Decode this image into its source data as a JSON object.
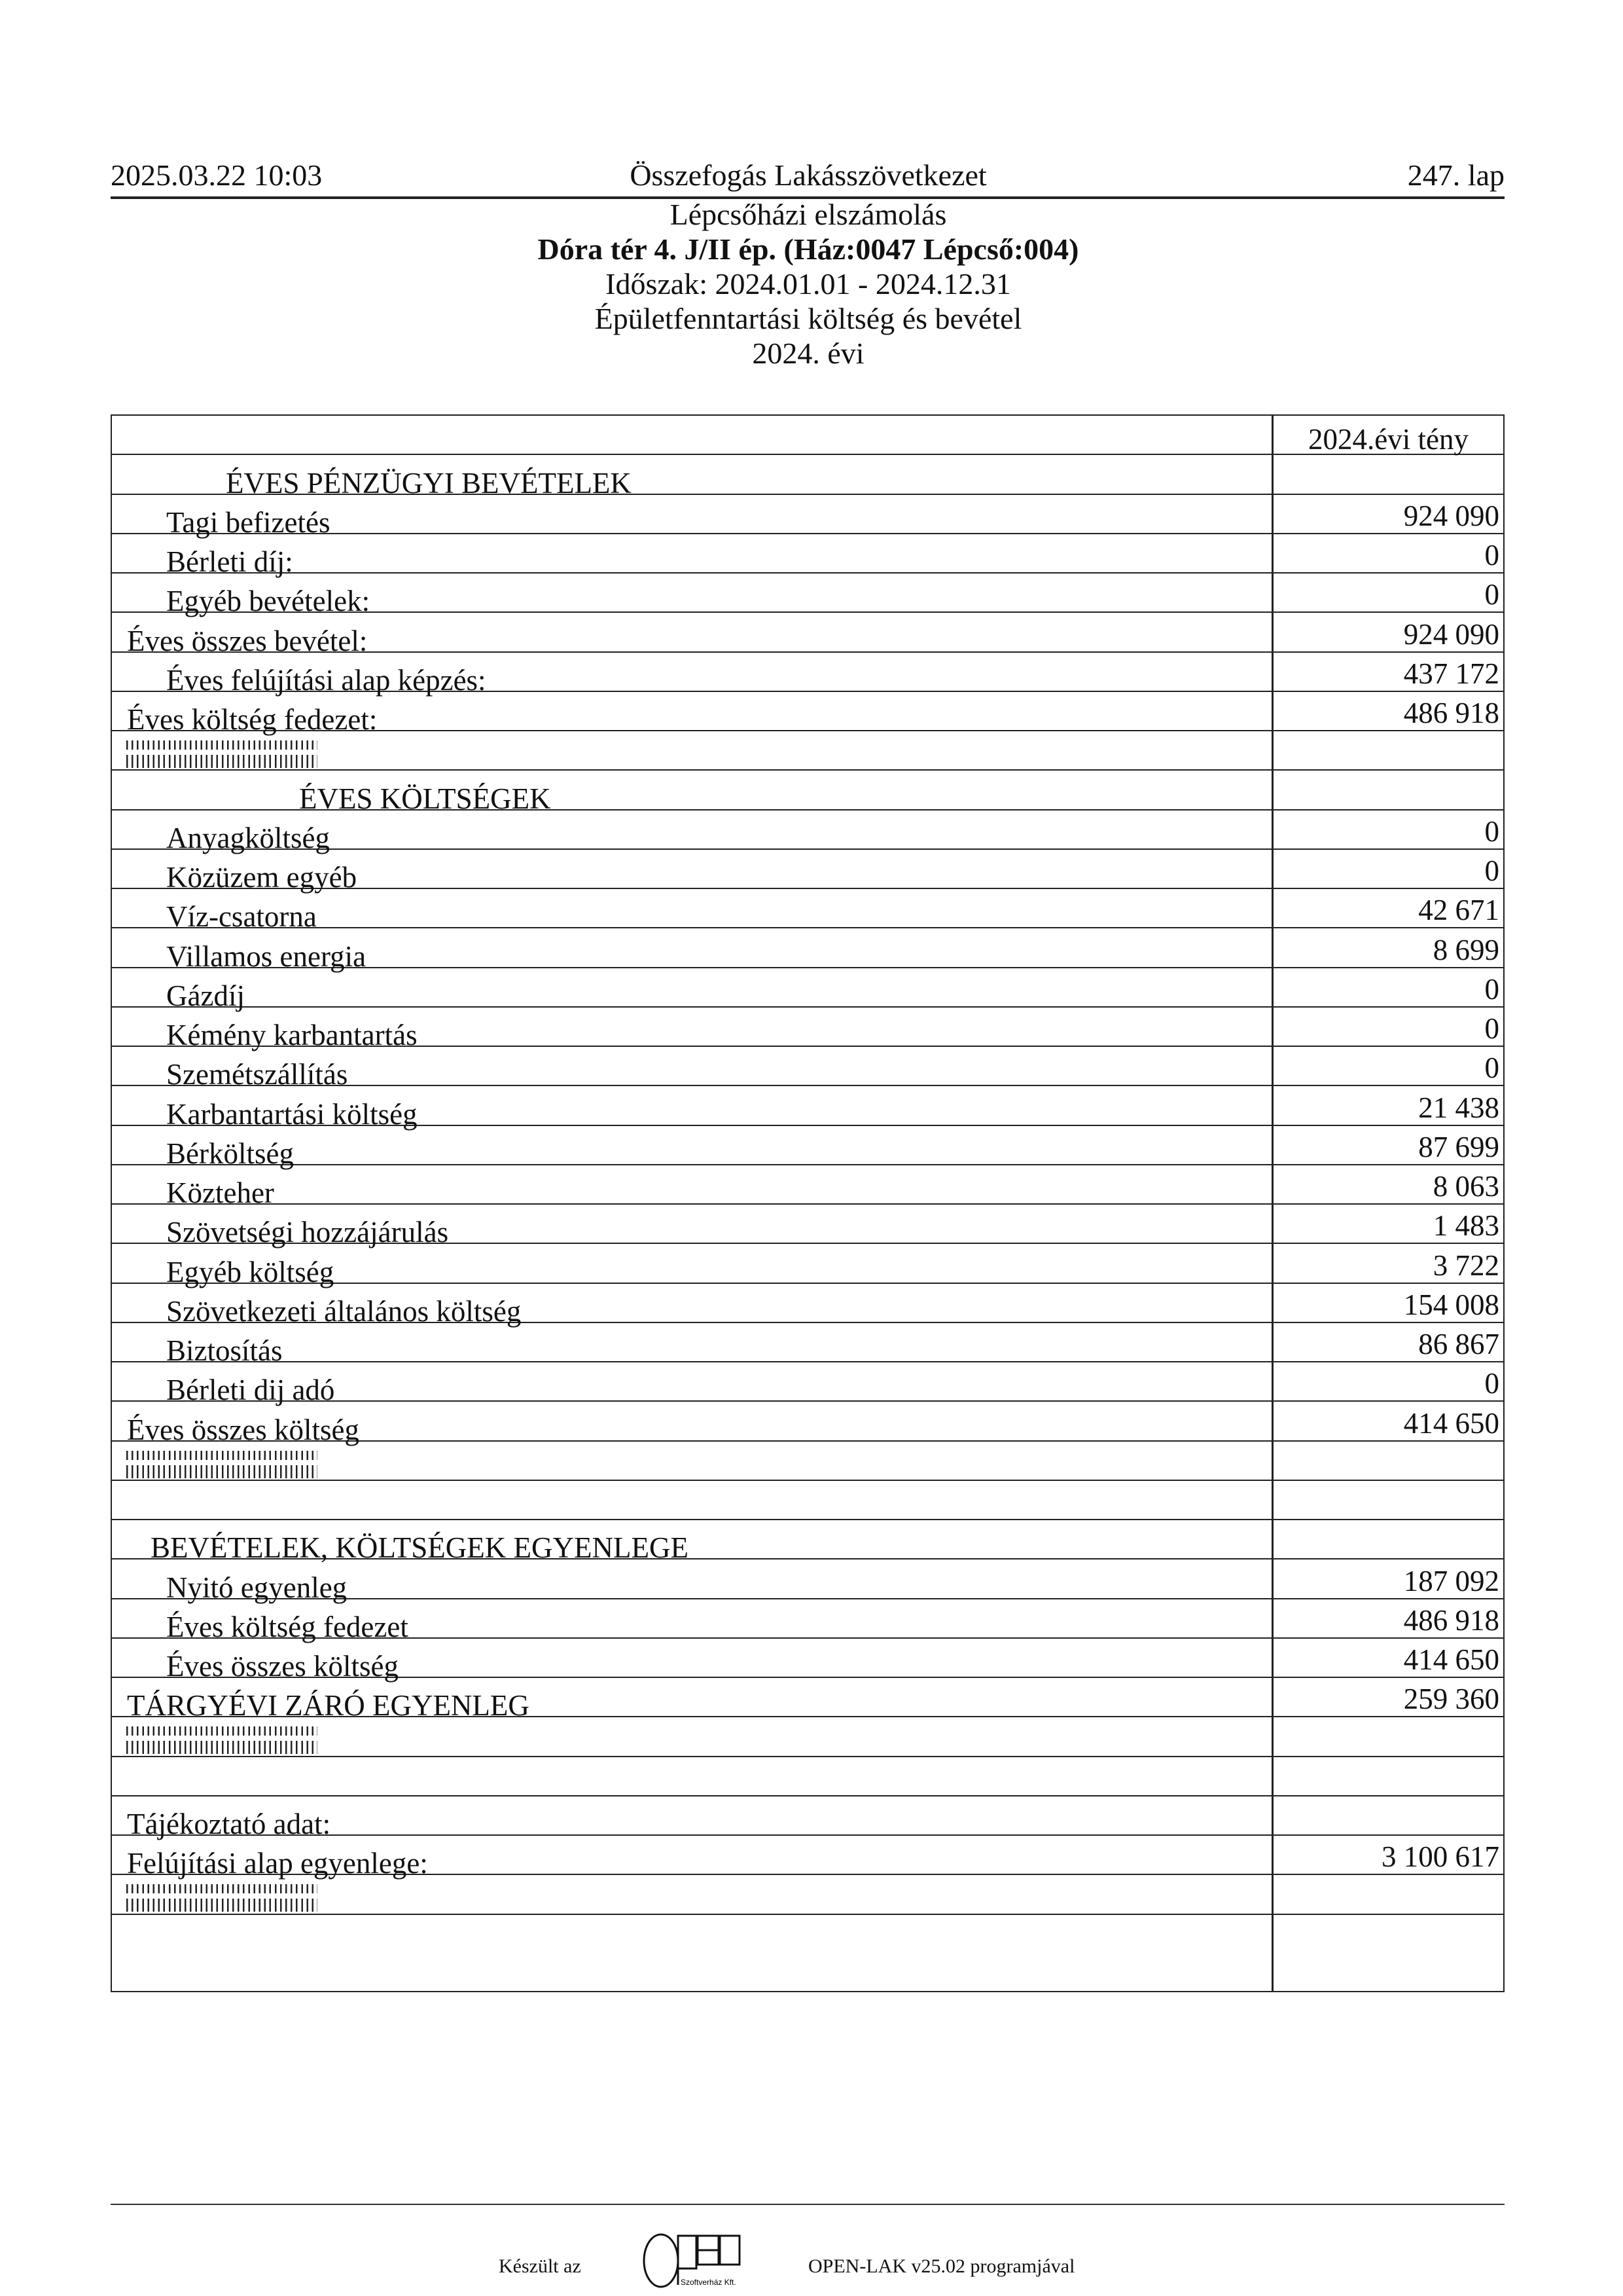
{
  "header": {
    "datetime": "2025.03.22 10:03",
    "organization": "Összefogás Lakásszövetkezet",
    "page": "247. lap"
  },
  "titles": {
    "line1": "Lépcsőházi elszámolás",
    "line2": "Dóra tér 4. J/II ép. (Ház:0047 Lépcső:004)",
    "line3": "Időszak: 2024.01.01 - 2024.12.31",
    "line4": "Épületfenntartási költség és bevétel",
    "line5": "2024. évi"
  },
  "table": {
    "column_header": "2024.évi tény",
    "rows": [
      {
        "kind": "section-income",
        "label": "ÉVES PÉNZÜGYI BEVÉTELEK",
        "value": ""
      },
      {
        "kind": "item",
        "label": "Tagi  befizetés",
        "value": "924 090"
      },
      {
        "kind": "item",
        "label": "Bérleti díj:",
        "value": "0"
      },
      {
        "kind": "item",
        "label": "Egyéb bevételek:",
        "value": "0"
      },
      {
        "kind": "total",
        "label": "Éves összes bevétel:",
        "value": "924 090"
      },
      {
        "kind": "item",
        "label": "Éves felújítási alap képzés:",
        "value": "437 172"
      },
      {
        "kind": "total",
        "label": "Éves költség fedezet:",
        "value": "486 918"
      },
      {
        "kind": "hatch",
        "label": "",
        "value": ""
      },
      {
        "kind": "section-costs",
        "label": "ÉVES KÖLTSÉGEK",
        "value": ""
      },
      {
        "kind": "item",
        "label": "Anyagköltség",
        "value": "0"
      },
      {
        "kind": "item",
        "label": "Közüzem egyéb",
        "value": "0"
      },
      {
        "kind": "item",
        "label": "Víz-csatorna",
        "value": "42 671"
      },
      {
        "kind": "item",
        "label": "Villamos energia",
        "value": "8 699"
      },
      {
        "kind": "item",
        "label": "Gázdíj",
        "value": "0"
      },
      {
        "kind": "item",
        "label": "Kémény karbantartás",
        "value": "0"
      },
      {
        "kind": "item",
        "label": "Szemétszállítás",
        "value": "0"
      },
      {
        "kind": "item",
        "label": "Karbantartási költség",
        "value": "21 438"
      },
      {
        "kind": "item",
        "label": "Bérköltség",
        "value": "87 699"
      },
      {
        "kind": "item",
        "label": "Közteher",
        "value": "8 063"
      },
      {
        "kind": "item",
        "label": "Szövetségi hozzájárulás",
        "value": "1 483"
      },
      {
        "kind": "item",
        "label": "Egyéb költség",
        "value": "3 722"
      },
      {
        "kind": "item",
        "label": "Szövetkezeti általános költség",
        "value": "154 008"
      },
      {
        "kind": "item",
        "label": "Biztosítás",
        "value": "86 867"
      },
      {
        "kind": "item",
        "label": "Bérleti dij adó",
        "value": "0"
      },
      {
        "kind": "total",
        "label": "Éves összes költség",
        "value": "414 650"
      },
      {
        "kind": "hatch",
        "label": "",
        "value": ""
      },
      {
        "kind": "blank",
        "label": "",
        "value": ""
      },
      {
        "kind": "section-balance",
        "label": "BEVÉTELEK, KÖLTSÉGEK EGYENLEGE",
        "value": ""
      },
      {
        "kind": "item",
        "label": "Nyitó egyenleg",
        "value": "187 092"
      },
      {
        "kind": "item",
        "label": "Éves költség fedezet",
        "value": "486 918"
      },
      {
        "kind": "item",
        "label": "Éves összes költség",
        "value": "414 650"
      },
      {
        "kind": "total",
        "label": "TÁRGYÉVI ZÁRÓ EGYENLEG",
        "value": "259 360"
      },
      {
        "kind": "hatch",
        "label": "",
        "value": ""
      },
      {
        "kind": "blank",
        "label": "",
        "value": ""
      },
      {
        "kind": "total",
        "label": "Tájékoztató adat:",
        "value": ""
      },
      {
        "kind": "total",
        "label": "Felújítási alap egyenlege:",
        "value": "3 100 617"
      },
      {
        "kind": "hatch",
        "label": "",
        "value": ""
      },
      {
        "kind": "blank",
        "label": "",
        "value": ""
      }
    ]
  },
  "footer": {
    "made_with": "Készült az",
    "logo_text": "OPEN",
    "logo_subtext": "Szoftverház Kft.",
    "program": "OPEN-LAK v25.02 programjával"
  }
}
